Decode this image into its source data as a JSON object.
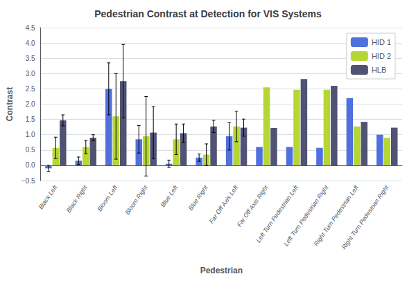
{
  "chart_data": {
    "type": "bar",
    "title": "Pedestrian Contrast at Detection for VIS Systems",
    "xlabel": "Pedestrian",
    "ylabel": "Contrast",
    "categories": [
      "Black Left",
      "Black Right",
      "Bloom Left",
      "Bloom Right",
      "Blue Left",
      "Blue Right",
      "Far Off Axis Left",
      "Far Off Axis Right",
      "Left Turn Pedestrian Left",
      "Left Turn Pedestrian Right",
      "Right Turn Pedestrian Left",
      "Right Turn Pedestrian Right"
    ],
    "series": [
      {
        "name": "HID 1",
        "values": [
          -0.1,
          0.15,
          2.5,
          0.85,
          0.05,
          0.25,
          0.95,
          0.6,
          0.6,
          0.57,
          2.2,
          1.0
        ],
        "errors": [
          0.1,
          0.12,
          0.85,
          0.45,
          0.12,
          0.12,
          0.45,
          0.0,
          0.0,
          0.0,
          0.0,
          0.0
        ]
      },
      {
        "name": "HID 2",
        "values": [
          0.57,
          0.6,
          1.6,
          0.95,
          0.85,
          0.35,
          1.27,
          2.55,
          2.47,
          2.47,
          1.27,
          0.9
        ],
        "errors": [
          0.35,
          0.22,
          1.4,
          1.3,
          0.5,
          0.35,
          0.5,
          0.0,
          0.0,
          0.0,
          0.0,
          0.0
        ]
      },
      {
        "name": "HLB",
        "values": [
          1.47,
          0.9,
          2.75,
          1.07,
          1.05,
          1.27,
          1.23,
          1.22,
          2.82,
          2.6,
          1.42,
          1.23
        ],
        "errors": [
          0.18,
          0.1,
          1.2,
          0.85,
          0.3,
          0.2,
          0.28,
          0.0,
          0.0,
          0.0,
          0.0,
          0.0
        ]
      }
    ],
    "ylim": [
      -0.5,
      4.5
    ],
    "yticks": [
      {
        "value": -0.5,
        "label": "−0.5"
      },
      {
        "value": 0,
        "label": "0.0"
      },
      0.5,
      {
        "value": 1,
        "label": "1.0"
      },
      1.5,
      {
        "value": 2,
        "label": "2.0"
      },
      2.5,
      {
        "value": 3,
        "label": "3.0"
      },
      3.5,
      {
        "value": 4,
        "label": "4.0"
      },
      4.5
    ],
    "grid": true,
    "legend": "upper right"
  }
}
